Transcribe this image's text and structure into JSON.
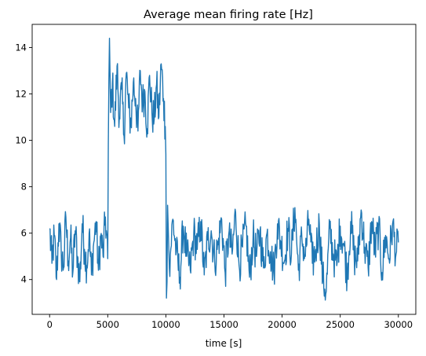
{
  "chart_data": {
    "type": "line",
    "title": "Average mean firing rate [Hz]",
    "xlabel": "time [s]",
    "ylabel": "",
    "xlim": [
      -1500,
      31500
    ],
    "ylim": [
      2.5,
      15.0
    ],
    "x_ticks": [
      0,
      5000,
      10000,
      15000,
      20000,
      25000,
      30000
    ],
    "y_ticks": [
      4,
      6,
      8,
      10,
      12,
      14
    ],
    "grid": false,
    "legend": "none",
    "series": [
      {
        "color": "#1f77b4",
        "x": [
          0,
          200,
          400,
          600,
          800,
          1000,
          1200,
          1400,
          1600,
          1800,
          2000,
          2200,
          2400,
          2600,
          2800,
          3000,
          3200,
          3400,
          3600,
          3800,
          4000,
          4200,
          4400,
          4600,
          4800,
          5000,
          5050,
          5100,
          5150,
          5250,
          5400,
          5600,
          5800,
          6000,
          6200,
          6400,
          6600,
          6800,
          7000,
          7200,
          7400,
          7600,
          7800,
          8000,
          8200,
          8400,
          8600,
          8800,
          9000,
          9200,
          9400,
          9600,
          9800,
          9950,
          10000,
          10050,
          10100,
          10150,
          10300,
          10600,
          10900,
          11200,
          11500,
          11800,
          12100,
          12400,
          12700,
          13000,
          13300,
          13600,
          13900,
          14200,
          14500,
          14800,
          15100,
          15400,
          15700,
          16000,
          16300,
          16600,
          16900,
          17200,
          17500,
          17800,
          18100,
          18400,
          18700,
          19000,
          19300,
          19600,
          19900,
          20200,
          20500,
          20800,
          21100,
          21400,
          21700,
          22000,
          22300,
          22600,
          22900,
          23200,
          23500,
          23800,
          24100,
          24400,
          24700,
          25000,
          25300,
          25600,
          25900,
          26200,
          26500,
          26800,
          27100,
          27400,
          27700,
          28000,
          28300,
          28600,
          28900,
          29200,
          29500,
          29800,
          30000
        ],
        "y": [
          6.2,
          4.7,
          5.9,
          4.0,
          6.4,
          5.2,
          4.5,
          6.7,
          4.8,
          5.8,
          4.3,
          6.1,
          5.0,
          3.9,
          6.4,
          5.3,
          4.6,
          6.0,
          4.2,
          5.6,
          6.5,
          4.4,
          5.9,
          5.0,
          6.7,
          4.9,
          9.8,
          12.6,
          14.4,
          11.2,
          12.5,
          10.6,
          13.2,
          11.0,
          12.2,
          10.2,
          12.9,
          11.4,
          10.7,
          12.5,
          11.8,
          10.4,
          13.0,
          11.6,
          12.1,
          10.5,
          12.8,
          11.2,
          10.9,
          12.4,
          11.0,
          13.3,
          11.8,
          10.6,
          9.4,
          3.2,
          3.9,
          7.2,
          4.5,
          6.6,
          5.2,
          4.1,
          6.3,
          5.0,
          4.4,
          6.0,
          5.3,
          6.5,
          4.2,
          5.7,
          6.1,
          4.8,
          5.5,
          6.6,
          4.3,
          5.9,
          5.1,
          6.9,
          4.6,
          5.4,
          6.3,
          4.1,
          5.8,
          5.0,
          6.1,
          4.5,
          6.0,
          5.2,
          4.3,
          6.4,
          5.6,
          4.8,
          6.2,
          5.1,
          7.1,
          4.4,
          5.8,
          5.0,
          6.6,
          4.7,
          5.3,
          6.4,
          4.0,
          3.5,
          6.2,
          5.1,
          4.6,
          6.3,
          5.5,
          4.2,
          6.5,
          5.0,
          4.8,
          7.0,
          5.4,
          4.5,
          6.5,
          5.2,
          6.3,
          4.3,
          5.9,
          4.9,
          6.4,
          5.1,
          5.6
        ],
        "noise_band": [
          0.9,
          0.9,
          0.9,
          0.9,
          0.9,
          0.9,
          0.9,
          0.9,
          0.9,
          0.9,
          0.9,
          0.9,
          0.9,
          0.9,
          0.9,
          0.9,
          0.9,
          0.9,
          0.9,
          0.9,
          0.9,
          0.9,
          0.9,
          0.9,
          0.9,
          0.9,
          0.0,
          0.0,
          0.0,
          0.9,
          0.9,
          0.9,
          0.9,
          0.9,
          0.9,
          0.9,
          0.9,
          0.9,
          0.9,
          0.9,
          0.9,
          0.9,
          0.9,
          0.9,
          0.9,
          0.9,
          0.9,
          0.9,
          0.9,
          0.9,
          0.9,
          0.9,
          0.9,
          0.9,
          0.0,
          0.0,
          0.0,
          0.0,
          0.9,
          0.9,
          0.9,
          0.9,
          0.9,
          0.9,
          0.9,
          0.9,
          0.9,
          0.9,
          0.9,
          0.9,
          0.9,
          0.9,
          0.9,
          0.9,
          0.9,
          0.9,
          0.9,
          0.9,
          0.9,
          0.9,
          0.9,
          0.9,
          0.9,
          0.9,
          0.9,
          0.9,
          0.9,
          0.9,
          0.9,
          0.9,
          0.9,
          0.9,
          0.9,
          0.9,
          0.9,
          0.9,
          0.9,
          0.9,
          0.9,
          0.9,
          0.9,
          0.9,
          0.9,
          0.9,
          0.9,
          0.9,
          0.9,
          0.9,
          0.9,
          0.9,
          0.9,
          0.9,
          0.9,
          0.9,
          0.9,
          0.9,
          0.9,
          0.9,
          0.9,
          0.9,
          0.9,
          0.9,
          0.9,
          0.9,
          0.9
        ]
      }
    ]
  }
}
